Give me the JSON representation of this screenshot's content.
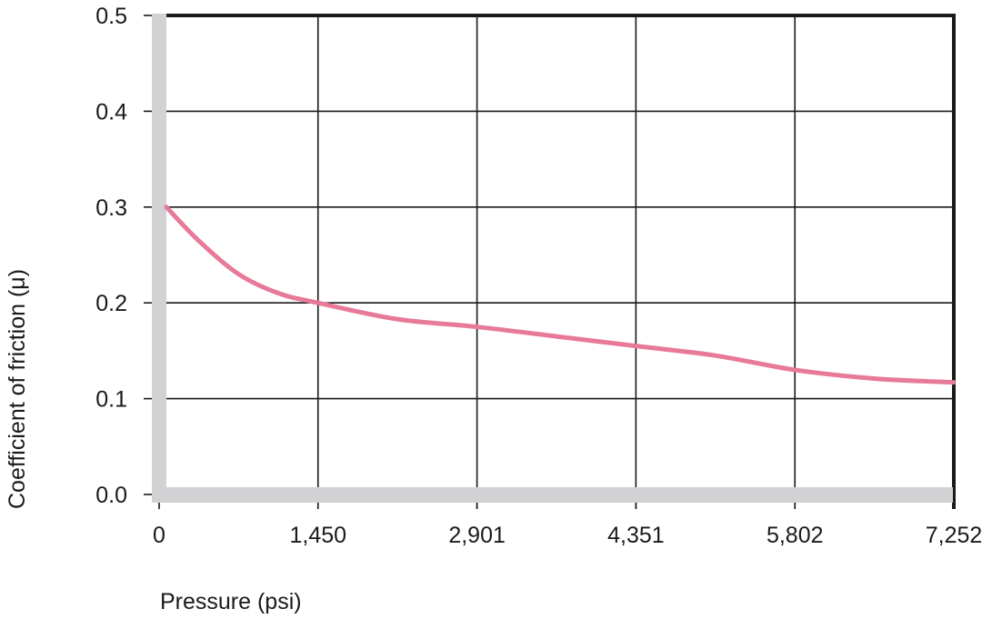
{
  "chart_data": {
    "type": "line",
    "title": "",
    "xlabel": "Pressure (psi)",
    "ylabel": "Coefficient of friction (μ)",
    "xlim": [
      0,
      7252
    ],
    "ylim": [
      0.0,
      0.5
    ],
    "x_ticks": [
      "0",
      "1,450",
      "2,901",
      "4,351",
      "5,802",
      "7,252"
    ],
    "x_tick_values": [
      0,
      1450,
      2901,
      4351,
      5802,
      7252
    ],
    "y_ticks": [
      "0.0",
      "0.1",
      "0.2",
      "0.3",
      "0.4",
      "0.5"
    ],
    "y_tick_values": [
      0.0,
      0.1,
      0.2,
      0.3,
      0.4,
      0.5
    ],
    "grid": true,
    "legend": null,
    "series": [
      {
        "name": "Coefficient of friction",
        "color": "#e87a99",
        "x": [
          0,
          360,
          725,
          1090,
          1450,
          2175,
          2901,
          3626,
          4351,
          5077,
          5802,
          6527,
          7252
        ],
        "values": [
          0.3,
          0.265,
          0.23,
          0.21,
          0.2,
          0.183,
          0.175,
          0.165,
          0.155,
          0.145,
          0.13,
          0.121,
          0.117
        ]
      }
    ]
  },
  "colors": {
    "axis_bar": "#d2d2d4",
    "grid": "#1a1a1a",
    "line": "#e87a99"
  }
}
